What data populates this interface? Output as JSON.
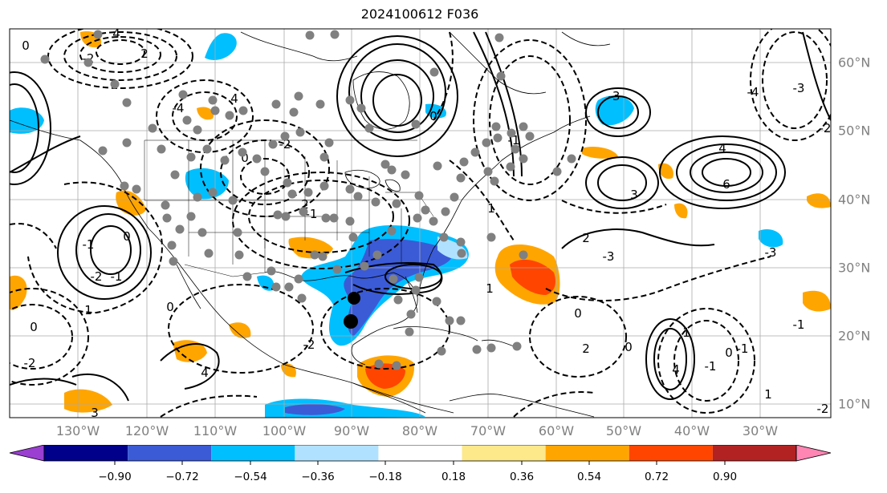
{
  "title": "2024100612 F036",
  "lon_labels": [
    "130°W",
    "120°W",
    "110°W",
    "100°W",
    "90°W",
    "80°W",
    "70°W",
    "60°W",
    "50°W",
    "40°W",
    "30°W"
  ],
  "lat_labels": [
    "60°N",
    "50°N",
    "40°N",
    "30°N",
    "20°N",
    "10°N"
  ],
  "colorbar": {
    "ticks": [
      "−0.90",
      "−0.72",
      "−0.54",
      "−0.36",
      "−0.18",
      "0.18",
      "0.36",
      "0.54",
      "0.72",
      "0.90"
    ],
    "colors": [
      "#9a3fd1",
      "#00008b",
      "#3b5bd6",
      "#00bfff",
      "#b0e2ff",
      "#ffffff",
      "#fde88a",
      "#ffa500",
      "#ff4500",
      "#b22222",
      "#ff85b3"
    ]
  },
  "contour_labels": [
    "0",
    "4",
    "2",
    "-4",
    "-2",
    "4",
    "-2",
    "-3",
    "0",
    "-1",
    "-4",
    "3",
    "6",
    "-2",
    "4",
    "-3",
    "0",
    "-2",
    "-1",
    "2",
    "-1",
    "0",
    "-1",
    "-2",
    "0",
    "1",
    "0",
    "-2",
    "1",
    "2",
    "-3",
    "-3",
    "0",
    "1",
    "-1",
    "-1",
    "4",
    "2",
    "-2",
    "1",
    "0",
    "0",
    "1",
    "-1",
    "4",
    "3"
  ]
}
